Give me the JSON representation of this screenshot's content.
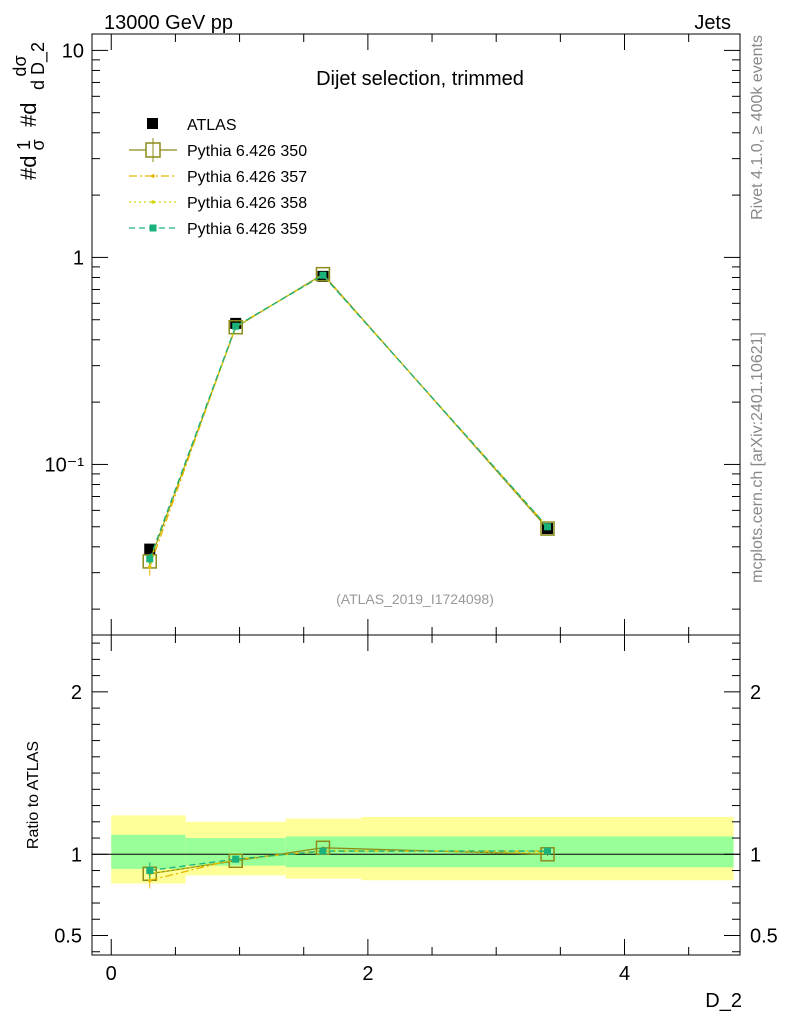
{
  "header": {
    "left": "13000 GeV pp",
    "right": "Jets",
    "side_right_top": "Rivet 4.1.0, ≥ 400k events",
    "side_right_bottom": "mcplots.cern.ch [arXiv:2401.10621]"
  },
  "chart_data": [
    {
      "type": "line",
      "title": "Dijet selection, trimmed",
      "subtitle": "(ATLAS_2019_I1724098)",
      "ylabel": "#d¹⁄σ #dᵈσ⁄d D_2",
      "ylabel_parts": {
        "prefix1": "#d",
        "num1": "1",
        "den1": "σ",
        "prefix2": "#d",
        "num2": "dσ",
        "den2": "d D_2"
      },
      "xlabel": "D_2",
      "y_scale": "log",
      "xlim": [
        -0.15,
        4.9
      ],
      "ylim": [
        0.015,
        12
      ],
      "y_ticks": [
        {
          "value": 0.1,
          "label": "10⁻¹"
        },
        {
          "value": 1,
          "label": "1"
        },
        {
          "value": 10,
          "label": "10"
        }
      ],
      "legend_position": "top-left",
      "x": [
        0.3,
        0.97,
        1.65,
        3.4
      ],
      "series": [
        {
          "name": "ATLAS",
          "color": "#000000",
          "marker": "filled-square",
          "style": "points",
          "values": [
            0.039,
            0.48,
            0.81,
            0.049
          ],
          "errors": [
            0.002,
            0.015,
            0.02,
            0.002
          ]
        },
        {
          "name": "Pythia 6.426 350",
          "color": "#8b8b1a",
          "marker": "open-square",
          "style": "solid",
          "values": [
            0.034,
            0.46,
            0.83,
            0.049
          ],
          "errors": [
            0.002,
            0.01,
            0.01,
            0.001
          ]
        },
        {
          "name": "Pythia 6.426 357",
          "color": "#e6b800",
          "marker": "small-dot",
          "style": "dashdot",
          "values": [
            0.032,
            0.465,
            0.82,
            0.05
          ],
          "errors": [
            0.003,
            0.01,
            0.01,
            0.001
          ]
        },
        {
          "name": "Pythia 6.426 358",
          "color": "#d4d40a",
          "marker": "small-dot",
          "style": "dotted",
          "values": [
            0.034,
            0.462,
            0.825,
            0.0495
          ],
          "errors": [
            0.002,
            0.01,
            0.01,
            0.001
          ]
        },
        {
          "name": "Pythia 6.426 359",
          "color": "#1ab27a",
          "marker": "filled-square-small",
          "style": "dashed",
          "values": [
            0.035,
            0.465,
            0.82,
            0.05
          ],
          "errors": [
            0.002,
            0.01,
            0.01,
            0.001
          ]
        }
      ]
    },
    {
      "type": "line",
      "ylabel": "Ratio to ATLAS",
      "xlabel": "D_2",
      "xlim": [
        -0.15,
        4.9
      ],
      "ylim": [
        0.38,
        2.35
      ],
      "y_ticks": [
        {
          "value": 0.5,
          "label": "0.5"
        },
        {
          "value": 1,
          "label": "1"
        },
        {
          "value": 2,
          "label": "2"
        }
      ],
      "x_ticks": [
        {
          "value": 0,
          "label": "0"
        },
        {
          "value": 2,
          "label": "2"
        },
        {
          "value": 4,
          "label": "4"
        }
      ],
      "bands": {
        "bins": [
          [
            0.0,
            0.58
          ],
          [
            0.58,
            1.36
          ],
          [
            1.36,
            1.95
          ],
          [
            1.95,
            4.85
          ]
        ],
        "yellow": [
          [
            0.82,
            1.24
          ],
          [
            0.87,
            1.2
          ],
          [
            0.85,
            1.22
          ],
          [
            0.84,
            1.23
          ]
        ],
        "green": [
          [
            0.91,
            1.12
          ],
          [
            0.93,
            1.1
          ],
          [
            0.92,
            1.11
          ],
          [
            0.92,
            1.11
          ]
        ]
      },
      "x": [
        0.3,
        0.97,
        1.65,
        3.4
      ],
      "series": [
        {
          "name": "Pythia 6.426 350",
          "color": "#8b8b1a",
          "style": "solid",
          "values": [
            0.88,
            0.96,
            1.04,
            1.0
          ],
          "errors": [
            0.04,
            0.01,
            0.01,
            0.01
          ]
        },
        {
          "name": "Pythia 6.426 357",
          "color": "#e6b800",
          "style": "dashdot",
          "values": [
            0.84,
            0.97,
            1.02,
            1.02
          ],
          "errors": [
            0.05,
            0.01,
            0.01,
            0.01
          ]
        },
        {
          "name": "Pythia 6.426 358",
          "color": "#d4d40a",
          "style": "dotted",
          "values": [
            0.88,
            0.965,
            1.025,
            1.01
          ],
          "errors": [
            0.04,
            0.01,
            0.01,
            0.01
          ]
        },
        {
          "name": "Pythia 6.426 359",
          "color": "#1ab27a",
          "style": "dashed",
          "values": [
            0.9,
            0.97,
            1.02,
            1.02
          ],
          "errors": [
            0.05,
            0.01,
            0.01,
            0.01
          ]
        }
      ]
    }
  ]
}
